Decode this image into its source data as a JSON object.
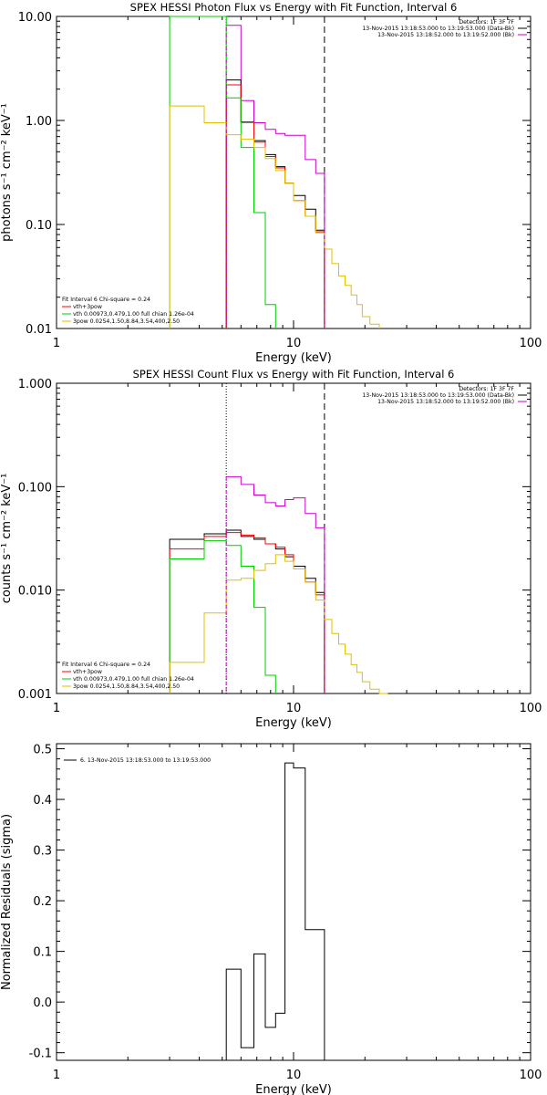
{
  "chart_data": [
    {
      "type": "line",
      "title": "SPEX HESSI Photon Flux vs Energy with Fit Function, Interval 6",
      "xlabel": "Energy (keV)",
      "ylabel": "photons s⁻¹ cm⁻² keV⁻¹",
      "xscale": "log",
      "yscale": "log",
      "xlim": [
        1,
        100
      ],
      "ylim": [
        0.01,
        10
      ],
      "x_ticks": [
        "1",
        "10",
        "100"
      ],
      "y_ticks": [
        "0.01",
        "0.10",
        "1.00",
        "10.00"
      ],
      "legend_top": [
        "Detectors: 1F 3F 7F",
        "13-Nov-2015 13:18:53.000 to 13:19:53.000 (Data-Bk)",
        "13-Nov-2015 13:18:52.000 to 13:19:52.000 (Bk)"
      ],
      "legend_bottom": [
        "Fit Interval 6   Chi-square = 0.24",
        "vth+3pow",
        "vth 0.00973,0.479,1.00  full chian 1.26e-04",
        "3pow 0.0254,1.50,8.84,3.54,400,2.50"
      ],
      "markers": {
        "dotted_x": 5.2,
        "dashed_x": 13.5
      },
      "series": [
        {
          "name": "13-Nov-2015 13:18:52.000 to 13:19:52.000 (Bk)",
          "color": "#cc00cc",
          "edges": [
            5.2,
            6.0,
            6.8,
            7.6,
            8.4,
            9.2,
            10.0,
            11.2,
            12.4,
            13.5
          ],
          "values": [
            8.2,
            1.55,
            0.95,
            0.82,
            0.75,
            0.72,
            0.72,
            0.42,
            0.31
          ]
        },
        {
          "name": "",
          "color": "#000000",
          "edges": [
            5.2,
            6.0,
            6.8,
            7.6,
            8.4,
            9.2,
            10.0,
            11.2,
            12.4,
            13.5
          ],
          "values": [
            2.45,
            0.96,
            0.64,
            0.47,
            0.36,
            0.25,
            0.19,
            0.14,
            0.088
          ]
        },
        {
          "name": "vth+3pow",
          "color": "#ff0000",
          "edges": [
            5.2,
            6.0,
            6.8,
            7.6,
            8.4,
            9.2,
            10.0,
            11.2,
            12.4,
            13.5
          ],
          "values": [
            2.2,
            0.97,
            0.62,
            0.45,
            0.35,
            0.25,
            0.17,
            0.12,
            0.085
          ]
        },
        {
          "name": "vth 0.00973,0.479,1.00  full chian 1.26e-04",
          "color": "#00cc00",
          "edges": [
            3.0,
            5.2,
            6.0,
            6.8,
            7.6,
            8.4
          ],
          "values": [
            10.0,
            1.65,
            0.55,
            0.13,
            0.017
          ]
        },
        {
          "name": "3pow 0.0254,1.50,8.84,3.54,400,2.50",
          "color": "#e0c000",
          "edges": [
            3.0,
            4.2,
            5.2,
            6.0,
            6.8,
            7.6,
            8.4,
            9.2,
            10.0,
            11.2,
            12.4,
            13.5,
            14.5,
            15.5,
            16.5,
            17.5,
            18.5,
            19.5,
            21.0,
            23.0
          ],
          "values": [
            1.38,
            0.95,
            0.73,
            0.66,
            0.55,
            0.43,
            0.33,
            0.25,
            0.17,
            0.12,
            0.083,
            0.058,
            0.042,
            0.032,
            0.026,
            0.021,
            0.017,
            0.013,
            0.011
          ]
        }
      ]
    },
    {
      "type": "line",
      "title": "SPEX HESSI Count Flux vs Energy with Fit Function, Interval 6",
      "xlabel": "Energy (keV)",
      "ylabel": "counts s⁻¹ cm⁻² keV⁻¹",
      "xscale": "log",
      "yscale": "log",
      "xlim": [
        1,
        100
      ],
      "ylim": [
        0.001,
        1
      ],
      "x_ticks": [
        "1",
        "10",
        "100"
      ],
      "y_ticks": [
        "0.001",
        "0.010",
        "0.100",
        "1.000"
      ],
      "legend_top": [
        "Detectors: 1F 3F 7F",
        "13-Nov-2015 13:18:53.000 to 13:19:53.000 (Data-Bk)",
        "13-Nov-2015 13:18:52.000 to 13:19:52.000 (Bk)"
      ],
      "legend_bottom": [
        "Fit Interval 6   Chi-square = 0.24",
        "vth+3pow",
        "vth 0.00973,0.479,1.00  full chian 1.26e-04",
        "3pow 0.0254,1.50,8.84,3.54,400,2.50"
      ],
      "markers": {
        "dotted_x": 5.2,
        "dashed_x": 13.5
      },
      "series": [
        {
          "name": "13-Nov-2015 13:18:52.000 to 13:19:52.000 (Bk)",
          "color": "#cc00cc",
          "edges": [
            5.2,
            6.0,
            6.8,
            7.6,
            8.4,
            9.2,
            10.0,
            11.2,
            12.4,
            13.5
          ],
          "values": [
            0.125,
            0.105,
            0.083,
            0.07,
            0.065,
            0.075,
            0.078,
            0.055,
            0.04
          ]
        },
        {
          "name": "",
          "color": "#000000",
          "edges": [
            3.0,
            4.2,
            5.2,
            6.0,
            6.8,
            7.6,
            8.4,
            9.2,
            10.0,
            11.2,
            12.4,
            13.5
          ],
          "values": [
            0.031,
            0.035,
            0.038,
            0.033,
            0.031,
            0.028,
            0.025,
            0.021,
            0.017,
            0.013,
            0.0095
          ]
        },
        {
          "name": "vth+3pow",
          "color": "#ff0000",
          "edges": [
            3.0,
            4.2,
            5.2,
            6.0,
            6.8,
            7.6,
            8.4,
            9.2,
            10.0,
            11.2,
            12.4,
            13.5
          ],
          "values": [
            0.025,
            0.033,
            0.036,
            0.034,
            0.032,
            0.028,
            0.026,
            0.022,
            0.016,
            0.012,
            0.009
          ]
        },
        {
          "name": "vth 0.00973,0.479,1.00  full chian 1.26e-04",
          "color": "#00cc00",
          "edges": [
            3.0,
            4.2,
            5.2,
            6.0,
            6.8,
            7.6,
            8.4
          ],
          "values": [
            0.02,
            0.03,
            0.027,
            0.017,
            0.0068,
            0.0015
          ]
        },
        {
          "name": "3pow 0.0254,1.50,8.84,3.54,400,2.50",
          "color": "#e0c000",
          "edges": [
            3.0,
            4.2,
            5.2,
            6.0,
            6.8,
            7.6,
            8.4,
            9.2,
            10.0,
            11.2,
            12.4,
            13.5,
            14.5,
            15.5,
            16.5,
            17.5,
            18.5,
            19.5,
            21.0,
            23.0,
            25.0
          ],
          "values": [
            0.002,
            0.006,
            0.0125,
            0.013,
            0.0155,
            0.018,
            0.022,
            0.019,
            0.016,
            0.012,
            0.008,
            0.0052,
            0.0038,
            0.003,
            0.0024,
            0.0019,
            0.0016,
            0.0013,
            0.0011,
            0.0009
          ]
        }
      ]
    },
    {
      "type": "line",
      "title": "",
      "xlabel": "Energy (keV)",
      "ylabel": "Normalized Residuals (sigma)",
      "xscale": "log",
      "yscale": "linear",
      "xlim": [
        1,
        100
      ],
      "ylim": [
        -0.115,
        0.51
      ],
      "x_ticks": [
        "1",
        "10",
        "100"
      ],
      "y_ticks": [
        "-0.1",
        "0.0",
        "0.1",
        "0.2",
        "0.3",
        "0.4",
        "0.5"
      ],
      "legend_top": [
        "6. 13-Nov-2015 13:18:53.000 to 13:19:53.000"
      ],
      "series": [
        {
          "name": "6. 13-Nov-2015 13:18:53.000 to 13:19:53.000",
          "color": "#000000",
          "edges": [
            5.2,
            6.0,
            6.8,
            7.6,
            8.4,
            9.2,
            10.0,
            11.2,
            12.4,
            13.5
          ],
          "values": [
            0.065,
            -0.09,
            0.095,
            -0.05,
            -0.022,
            0.472,
            0.462,
            0.143,
            0.143
          ]
        }
      ]
    }
  ]
}
